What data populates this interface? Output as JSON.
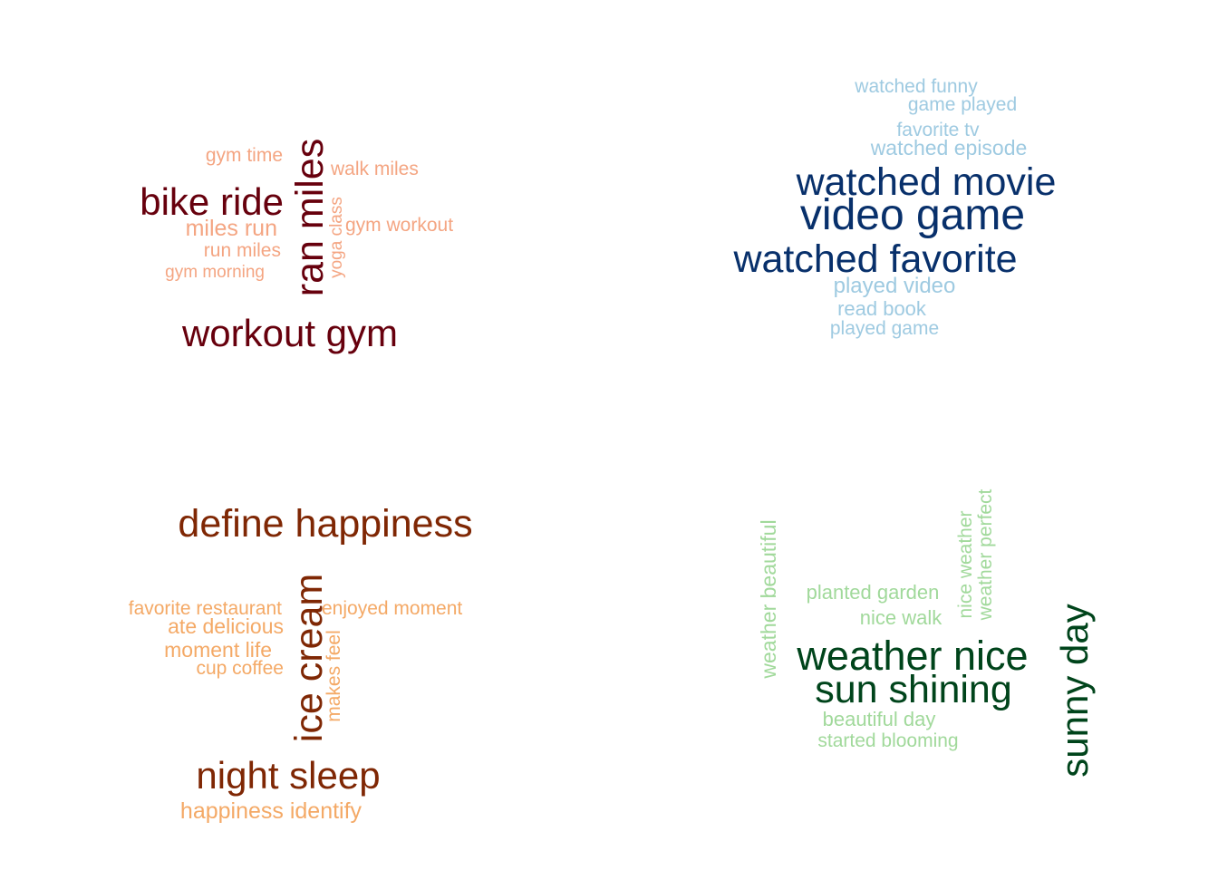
{
  "clouds": [
    {
      "palette": {
        "major": "#67000d",
        "minor": "#f4a582"
      },
      "words": [
        {
          "text": "gym time",
          "weight": 1
        },
        {
          "text": "walk miles",
          "weight": 1
        },
        {
          "text": "bike ride",
          "weight": 3
        },
        {
          "text": "miles run",
          "weight": 1
        },
        {
          "text": "gym workout",
          "weight": 1
        },
        {
          "text": "run miles",
          "weight": 1
        },
        {
          "text": "gym morning",
          "weight": 1
        },
        {
          "text": "yoga class",
          "weight": 1
        },
        {
          "text": "ran miles",
          "weight": 3
        },
        {
          "text": "workout gym",
          "weight": 3
        }
      ]
    },
    {
      "palette": {
        "major": "#08306b",
        "minor": "#9ecae1"
      },
      "words": [
        {
          "text": "watched funny",
          "weight": 1
        },
        {
          "text": "game played",
          "weight": 1
        },
        {
          "text": "favorite tv",
          "weight": 1
        },
        {
          "text": "watched episode",
          "weight": 1
        },
        {
          "text": "watched movie",
          "weight": 3
        },
        {
          "text": "video game",
          "weight": 3
        },
        {
          "text": "watched favorite",
          "weight": 3
        },
        {
          "text": "played video",
          "weight": 1
        },
        {
          "text": "read book",
          "weight": 1
        },
        {
          "text": "played game",
          "weight": 1
        }
      ]
    },
    {
      "palette": {
        "major": "#7f2704",
        "minor": "#f4a966"
      },
      "words": [
        {
          "text": "define happiness",
          "weight": 3
        },
        {
          "text": "favorite restaurant",
          "weight": 1
        },
        {
          "text": "enjoyed moment",
          "weight": 1
        },
        {
          "text": "ate delicious",
          "weight": 1
        },
        {
          "text": "moment life",
          "weight": 1
        },
        {
          "text": "cup coffee",
          "weight": 1
        },
        {
          "text": "makes feel",
          "weight": 1
        },
        {
          "text": "ice cream",
          "weight": 3
        },
        {
          "text": "night sleep",
          "weight": 3
        },
        {
          "text": "happiness identify",
          "weight": 1
        }
      ]
    },
    {
      "palette": {
        "major": "#00441b",
        "minor": "#a1d99b"
      },
      "words": [
        {
          "text": "weather beautiful",
          "weight": 1
        },
        {
          "text": "planted garden",
          "weight": 1
        },
        {
          "text": "nice weather",
          "weight": 1
        },
        {
          "text": "weather perfect",
          "weight": 1
        },
        {
          "text": "nice walk",
          "weight": 1
        },
        {
          "text": "weather nice",
          "weight": 3
        },
        {
          "text": "sun shining",
          "weight": 3
        },
        {
          "text": "sunny day",
          "weight": 3
        },
        {
          "text": "beautiful day",
          "weight": 1
        },
        {
          "text": "started blooming",
          "weight": 1
        }
      ]
    }
  ]
}
